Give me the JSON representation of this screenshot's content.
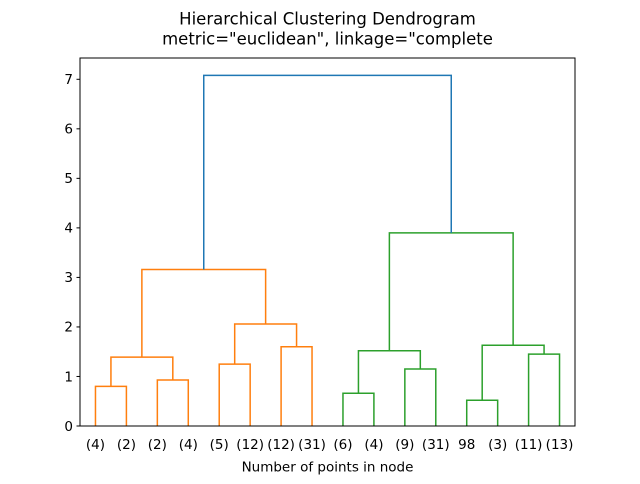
{
  "figure": {
    "title": "Hierarchical Clustering Dendrogram",
    "subtitle": "metric=\"euclidean\", linkage=\"complete",
    "xlabel": "Number of points in node"
  },
  "chart_data": {
    "type": "dendrogram",
    "title": "Hierarchical Clustering Dendrogram",
    "subtitle": "metric=\"euclidean\", linkage=\"complete",
    "xlabel": "Number of points in node",
    "ylabel": "",
    "grid": false,
    "legend": "none",
    "xlim": [
      0,
      160
    ],
    "ylim": [
      0,
      7.43
    ],
    "y_ticks": [
      0,
      1,
      2,
      3,
      4,
      5,
      6,
      7
    ],
    "leaf_labels": [
      "(4)",
      "(2)",
      "(2)",
      "(4)",
      "(5)",
      "(12)",
      "(12)",
      "(31)",
      "(6)",
      "(4)",
      "(9)",
      "(31)",
      "98",
      "(3)",
      "(11)",
      "(13)"
    ],
    "leaf_x": [
      5,
      15,
      25,
      35,
      45,
      55,
      65,
      75,
      85,
      95,
      105,
      115,
      125,
      135,
      145,
      155
    ],
    "links": [
      {
        "children": [
          "leaf:0",
          "leaf:1"
        ],
        "height": 0.8,
        "color": "#ff7f0e"
      },
      {
        "children": [
          "leaf:2",
          "leaf:3"
        ],
        "height": 0.93,
        "color": "#ff7f0e"
      },
      {
        "children": [
          "link:0",
          "link:1"
        ],
        "height": 1.39,
        "color": "#ff7f0e"
      },
      {
        "children": [
          "leaf:4",
          "leaf:5"
        ],
        "height": 1.25,
        "color": "#ff7f0e"
      },
      {
        "children": [
          "leaf:6",
          "leaf:7"
        ],
        "height": 1.6,
        "color": "#ff7f0e"
      },
      {
        "children": [
          "link:3",
          "link:4"
        ],
        "height": 2.06,
        "color": "#ff7f0e"
      },
      {
        "children": [
          "link:2",
          "link:5"
        ],
        "height": 3.16,
        "color": "#ff7f0e"
      },
      {
        "children": [
          "leaf:8",
          "leaf:9"
        ],
        "height": 0.66,
        "color": "#2ca02c"
      },
      {
        "children": [
          "leaf:10",
          "leaf:11"
        ],
        "height": 1.15,
        "color": "#2ca02c"
      },
      {
        "children": [
          "link:7",
          "link:8"
        ],
        "height": 1.52,
        "color": "#2ca02c"
      },
      {
        "children": [
          "leaf:12",
          "leaf:13"
        ],
        "height": 0.52,
        "color": "#2ca02c"
      },
      {
        "children": [
          "leaf:14",
          "leaf:15"
        ],
        "height": 1.45,
        "color": "#2ca02c"
      },
      {
        "children": [
          "link:10",
          "link:11"
        ],
        "height": 1.63,
        "color": "#2ca02c"
      },
      {
        "children": [
          "link:9",
          "link:12"
        ],
        "height": 3.9,
        "color": "#2ca02c"
      },
      {
        "children": [
          "link:6",
          "link:13"
        ],
        "height": 7.08,
        "color": "#1f77b4"
      }
    ],
    "colors": {
      "above_threshold_link": "#1f77b4",
      "left_cluster": "#ff7f0e",
      "right_cluster": "#2ca02c",
      "axis": "#000000",
      "background": "#ffffff"
    }
  }
}
